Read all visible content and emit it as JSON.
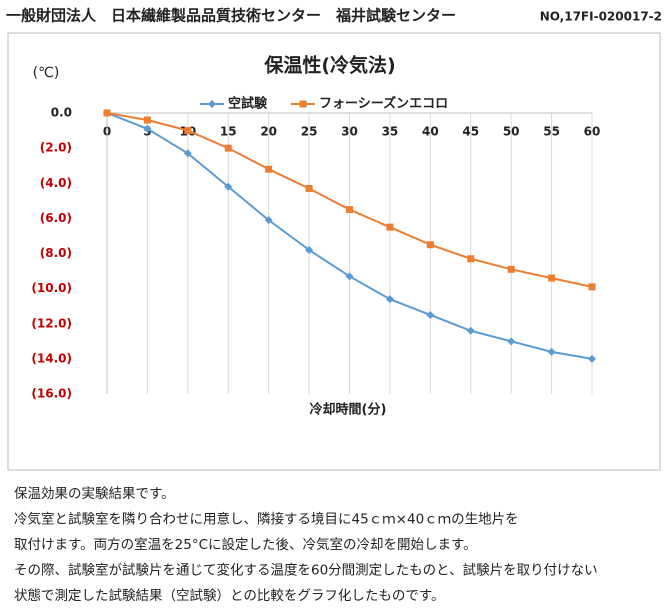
{
  "header": {
    "title": "一般財団法人　日本繊維製品品質技術センター　福井試験センター",
    "number": "NO,17FI-020017-2"
  },
  "chart_data": {
    "type": "line",
    "title": "保温性(冷気法)",
    "y_unit": "(℃)",
    "x_label": "冷却時間(分)",
    "x": [
      0,
      5,
      10,
      15,
      20,
      25,
      30,
      35,
      40,
      45,
      50,
      55,
      60
    ],
    "series": [
      {
        "name": "空試験",
        "color": "#5b9bd5",
        "marker": "diamond",
        "values": [
          0,
          -0.9,
          -2.3,
          -4.2,
          -6.1,
          -7.8,
          -9.3,
          -10.6,
          -11.5,
          -12.4,
          -13.0,
          -13.6,
          -14.0
        ]
      },
      {
        "name": "フォーシーズンエコロ",
        "color": "#ed7d31",
        "marker": "square",
        "values": [
          0,
          -0.4,
          -1.0,
          -2.0,
          -3.2,
          -4.3,
          -5.5,
          -6.5,
          -7.5,
          -8.3,
          -8.9,
          -9.4,
          -9.9
        ]
      }
    ],
    "xlim": [
      0,
      60
    ],
    "xticks": [
      0,
      5,
      10,
      15,
      20,
      25,
      30,
      35,
      40,
      45,
      50,
      55,
      60
    ],
    "ylim": [
      -16,
      0
    ],
    "yticks": [
      {
        "value": 0,
        "label": "0.0"
      },
      {
        "value": -2,
        "label": "(2.0)"
      },
      {
        "value": -4,
        "label": "(4.0)"
      },
      {
        "value": -6,
        "label": "(6.0)"
      },
      {
        "value": -8,
        "label": "(8.0)"
      },
      {
        "value": -10,
        "label": "(10.0)"
      },
      {
        "value": -12,
        "label": "(12.0)"
      },
      {
        "value": -14,
        "label": "(14.0)"
      },
      {
        "value": -16,
        "label": "(16.0)"
      }
    ],
    "negative_tick_color": "#c00000",
    "grid": "x",
    "legend": "top"
  },
  "body": {
    "lines": [
      "保温効果の実験結果です。",
      "冷気室と試験室を隣り合わせに用意し、隣接する境目に45ｃｍ×40ｃｍの生地片を",
      "取付けます。両方の室温を25°Cに設定した後、冷気室の冷却を開始します。",
      "その際、試験室が試験片を通じて変化する温度を60分間測定したものと、試験片を取り付けない",
      "状態で測定した試験結果（空試験）との比較をグラフ化したものです。"
    ]
  }
}
